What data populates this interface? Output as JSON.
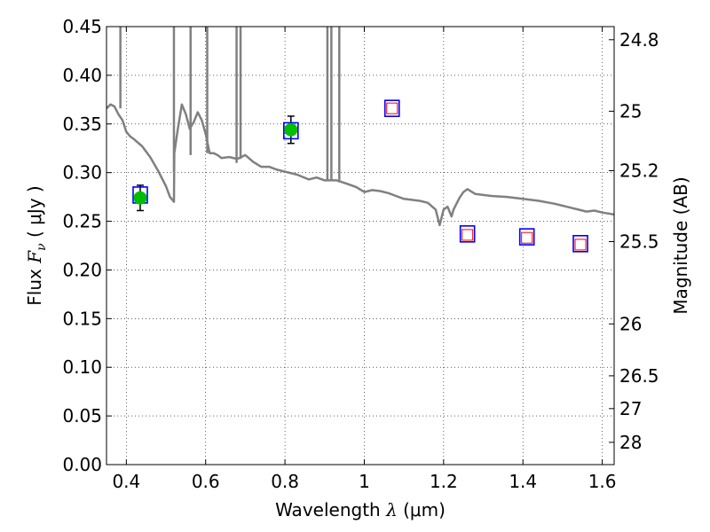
{
  "chart_data": {
    "type": "scatter",
    "xlabel": "Wavelength  λ (μm)",
    "xlabel_parts": {
      "prefix": "Wavelength  ",
      "symbol": "λ",
      "unit": " (μm)"
    },
    "ylabel": "Flux  Fν  ( μJy )",
    "ylabel_parts": {
      "prefix": "Flux  ",
      "symbol": "F",
      "subscript": "ν",
      "unit": "  ( μJy )"
    },
    "ylabel_right": "Magnitude (AB)",
    "xlim": [
      0.35,
      1.63
    ],
    "ylim": [
      0.0,
      0.45
    ],
    "grid": true,
    "x_ticks": [
      0.4,
      0.6,
      0.8,
      1.0,
      1.2,
      1.4,
      1.6
    ],
    "x_tick_labels": [
      "0.4",
      "0.6",
      "0.8",
      "1",
      "1.2",
      "1.4",
      "1.6"
    ],
    "y_ticks": [
      0.0,
      0.05,
      0.1,
      0.15,
      0.2,
      0.25,
      0.3,
      0.35,
      0.4,
      0.45
    ],
    "y_tick_labels": [
      "0.00",
      "0.05",
      "0.10",
      "0.15",
      "0.20",
      "0.25",
      "0.30",
      "0.35",
      "0.40",
      "0.45"
    ],
    "right_ticks": [
      {
        "mag": 24.8,
        "label": "24.8"
      },
      {
        "mag": 25.0,
        "label": "25"
      },
      {
        "mag": 25.2,
        "label": "25.2"
      },
      {
        "mag": 25.5,
        "label": "25.5"
      },
      {
        "mag": 26.0,
        "label": "26"
      },
      {
        "mag": 26.5,
        "label": "26.5"
      },
      {
        "mag": 27.0,
        "label": "27"
      },
      {
        "mag": 28.0,
        "label": "28"
      }
    ],
    "series": [
      {
        "name": "model SED",
        "kind": "line",
        "color": "#808080",
        "points": [
          [
            0.35,
            0.366
          ],
          [
            0.36,
            0.37
          ],
          [
            0.37,
            0.368
          ],
          [
            0.38,
            0.36
          ],
          [
            0.39,
            0.354
          ],
          [
            0.4,
            0.342
          ],
          [
            0.41,
            0.337
          ],
          [
            0.42,
            0.334
          ],
          [
            0.44,
            0.327
          ],
          [
            0.46,
            0.316
          ],
          [
            0.48,
            0.302
          ],
          [
            0.5,
            0.286
          ],
          [
            0.51,
            0.275
          ],
          [
            0.52,
            0.27
          ],
          [
            0.521,
            0.32
          ],
          [
            0.53,
            0.345
          ],
          [
            0.54,
            0.37
          ],
          [
            0.55,
            0.36
          ],
          [
            0.56,
            0.345
          ],
          [
            0.57,
            0.352
          ],
          [
            0.58,
            0.362
          ],
          [
            0.59,
            0.354
          ],
          [
            0.6,
            0.34
          ],
          [
            0.61,
            0.32
          ],
          [
            0.62,
            0.32
          ],
          [
            0.63,
            0.318
          ],
          [
            0.64,
            0.315
          ],
          [
            0.66,
            0.316
          ],
          [
            0.68,
            0.314
          ],
          [
            0.7,
            0.318
          ],
          [
            0.72,
            0.311
          ],
          [
            0.74,
            0.306
          ],
          [
            0.76,
            0.306
          ],
          [
            0.78,
            0.303
          ],
          [
            0.8,
            0.301
          ],
          [
            0.83,
            0.298
          ],
          [
            0.86,
            0.293
          ],
          [
            0.88,
            0.295
          ],
          [
            0.9,
            0.292
          ],
          [
            0.93,
            0.292
          ],
          [
            0.96,
            0.288
          ],
          [
            0.98,
            0.285
          ],
          [
            1.0,
            0.28
          ],
          [
            1.02,
            0.282
          ],
          [
            1.04,
            0.281
          ],
          [
            1.06,
            0.279
          ],
          [
            1.08,
            0.276
          ],
          [
            1.1,
            0.273
          ],
          [
            1.12,
            0.272
          ],
          [
            1.14,
            0.271
          ],
          [
            1.16,
            0.269
          ],
          [
            1.18,
            0.262
          ],
          [
            1.19,
            0.246
          ],
          [
            1.2,
            0.262
          ],
          [
            1.21,
            0.265
          ],
          [
            1.22,
            0.255
          ],
          [
            1.225,
            0.262
          ],
          [
            1.24,
            0.274
          ],
          [
            1.25,
            0.28
          ],
          [
            1.26,
            0.283
          ],
          [
            1.28,
            0.278
          ],
          [
            1.3,
            0.277
          ],
          [
            1.32,
            0.276
          ],
          [
            1.36,
            0.275
          ],
          [
            1.4,
            0.273
          ],
          [
            1.44,
            0.271
          ],
          [
            1.48,
            0.268
          ],
          [
            1.5,
            0.266
          ],
          [
            1.52,
            0.264
          ],
          [
            1.54,
            0.262
          ],
          [
            1.56,
            0.26
          ],
          [
            1.58,
            0.261
          ],
          [
            1.6,
            0.259
          ],
          [
            1.63,
            0.257
          ]
        ],
        "spikes": [
          {
            "x": 0.385,
            "from": 0.366,
            "to": 0.45
          },
          {
            "x": 0.52,
            "from": 0.3,
            "to": 0.45
          },
          {
            "x": 0.562,
            "from": 0.318,
            "to": 0.45
          },
          {
            "x": 0.604,
            "from": 0.32,
            "to": 0.45
          },
          {
            "x": 0.678,
            "from": 0.31,
            "to": 0.45
          },
          {
            "x": 0.688,
            "from": 0.314,
            "to": 0.45
          },
          {
            "x": 0.907,
            "from": 0.292,
            "to": 0.45
          },
          {
            "x": 0.917,
            "from": 0.292,
            "to": 0.45
          },
          {
            "x": 0.937,
            "from": 0.29,
            "to": 0.45
          }
        ]
      },
      {
        "name": "observed photometry",
        "kind": "points",
        "marker": "circle",
        "color": "#00bf00",
        "points": [
          {
            "x": 0.435,
            "y": 0.274,
            "err": 0.013
          },
          {
            "x": 0.815,
            "y": 0.344,
            "err": 0.014
          }
        ]
      },
      {
        "name": "model photometry",
        "kind": "points",
        "marker": "square",
        "color": "#0000ff",
        "points": [
          {
            "x": 0.435,
            "y": 0.277
          },
          {
            "x": 0.815,
            "y": 0.343
          },
          {
            "x": 1.07,
            "y": 0.366
          },
          {
            "x": 1.26,
            "y": 0.237
          },
          {
            "x": 1.41,
            "y": 0.234
          },
          {
            "x": 1.545,
            "y": 0.227
          }
        ]
      },
      {
        "name": "upper limits",
        "kind": "points",
        "marker": "open-square",
        "color": "#ff0000",
        "points": [
          {
            "x": 1.07,
            "y": 0.366
          },
          {
            "x": 1.26,
            "y": 0.236
          },
          {
            "x": 1.41,
            "y": 0.233
          },
          {
            "x": 1.545,
            "y": 0.226
          }
        ]
      }
    ]
  }
}
